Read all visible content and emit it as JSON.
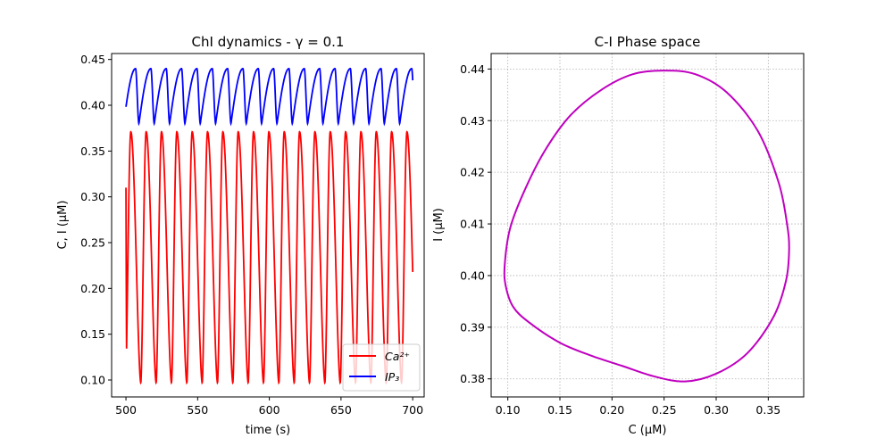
{
  "chart_data": [
    {
      "type": "line",
      "title": "ChI dynamics - γ = 0.1",
      "xlabel": "time (s)",
      "ylabel": "C, I (μM)",
      "xlim": [
        490,
        708
      ],
      "ylim": [
        0.0815,
        0.4565
      ],
      "xticks": [
        500,
        550,
        600,
        650,
        700
      ],
      "yticks": [
        0.1,
        0.15,
        0.2,
        0.25,
        0.3,
        0.35,
        0.4,
        0.45
      ],
      "xtick_labels": [
        "500",
        "550",
        "600",
        "650",
        "700"
      ],
      "ytick_labels": [
        "0.10",
        "0.15",
        "0.20",
        "0.25",
        "0.30",
        "0.35",
        "0.40",
        "0.45"
      ],
      "grid": false,
      "legend_position": "lower-right",
      "x_range": [
        500,
        700
      ],
      "period_s": 10.7,
      "series": [
        {
          "name": "Ca²⁺",
          "color": "#ff0000",
          "min": 0.097,
          "max": 0.371,
          "start": 0.31
        },
        {
          "name": "IP₃",
          "color": "#0000ff",
          "min": 0.38,
          "max": 0.44,
          "start": 0.437
        }
      ]
    },
    {
      "type": "line",
      "title": "C-I Phase space",
      "xlabel": "C (μM)",
      "ylabel": "I (μM)",
      "xlim": [
        0.084,
        0.384
      ],
      "ylim": [
        0.3765,
        0.443
      ],
      "xticks": [
        0.1,
        0.15,
        0.2,
        0.25,
        0.3,
        0.35
      ],
      "yticks": [
        0.38,
        0.39,
        0.4,
        0.41,
        0.42,
        0.43,
        0.44
      ],
      "xtick_labels": [
        "0.10",
        "0.15",
        "0.20",
        "0.25",
        "0.30",
        "0.35"
      ],
      "ytick_labels": [
        "0.38",
        "0.39",
        "0.40",
        "0.41",
        "0.42",
        "0.43",
        "0.44"
      ],
      "grid": true,
      "color": "#bf00bf",
      "loop": [
        [
          0.097,
          0.402
        ],
        [
          0.098,
          0.398
        ],
        [
          0.105,
          0.394
        ],
        [
          0.12,
          0.391
        ],
        [
          0.15,
          0.387
        ],
        [
          0.18,
          0.3845
        ],
        [
          0.21,
          0.3825
        ],
        [
          0.24,
          0.3805
        ],
        [
          0.27,
          0.3795
        ],
        [
          0.3,
          0.381
        ],
        [
          0.33,
          0.385
        ],
        [
          0.355,
          0.392
        ],
        [
          0.367,
          0.399
        ],
        [
          0.37,
          0.405
        ],
        [
          0.368,
          0.41
        ],
        [
          0.36,
          0.418
        ],
        [
          0.34,
          0.428
        ],
        [
          0.31,
          0.4355
        ],
        [
          0.28,
          0.439
        ],
        [
          0.25,
          0.4397
        ],
        [
          0.22,
          0.439
        ],
        [
          0.19,
          0.436
        ],
        [
          0.16,
          0.431
        ],
        [
          0.135,
          0.424
        ],
        [
          0.115,
          0.416
        ],
        [
          0.102,
          0.409
        ],
        [
          0.097,
          0.402
        ]
      ]
    }
  ]
}
